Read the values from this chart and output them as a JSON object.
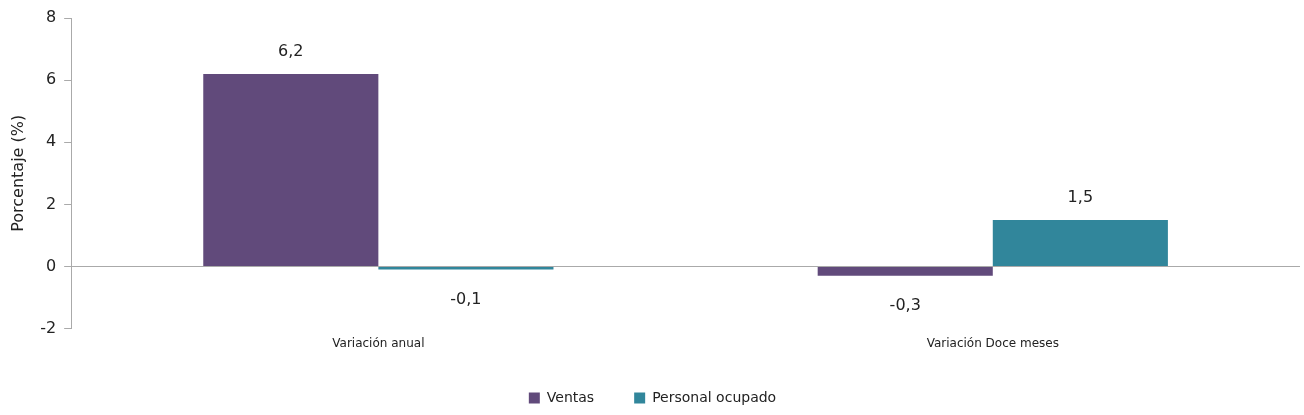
{
  "chart_data": {
    "type": "bar",
    "ylabel": "Porcentaje (%)",
    "categories": [
      "Variación anual",
      "Variación Doce meses"
    ],
    "series": [
      {
        "name": "Ventas",
        "color": "#614a7b",
        "values": [
          6.2,
          -0.3
        ],
        "value_labels": [
          "6,2",
          "-0,3"
        ]
      },
      {
        "name": "Personal ocupado",
        "color": "#31869b",
        "values": [
          -0.1,
          1.5
        ],
        "value_labels": [
          "-0,1",
          "1,5"
        ]
      }
    ],
    "ylim": [
      -2,
      8
    ],
    "yticks": [
      -2,
      0,
      2,
      4,
      6,
      8
    ],
    "legend": "bottom"
  }
}
